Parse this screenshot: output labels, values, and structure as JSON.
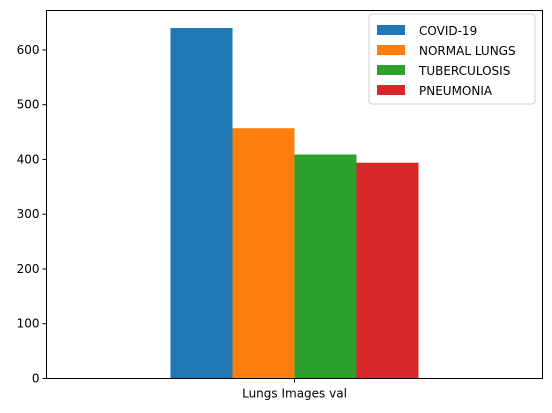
{
  "chart_data": {
    "type": "bar",
    "categories": [
      "Lungs Images val"
    ],
    "series": [
      {
        "name": "COVID-19",
        "values": [
          640
        ],
        "color": "#1f77b4"
      },
      {
        "name": "NORMAL LUNGS",
        "values": [
          457
        ],
        "color": "#ff7f0e"
      },
      {
        "name": "TUBERCULOSIS",
        "values": [
          409
        ],
        "color": "#2ca02c"
      },
      {
        "name": "PNEUMONIA",
        "values": [
          394
        ],
        "color": "#d62728"
      }
    ],
    "ylim": [
      0,
      672
    ],
    "yticks": [
      "0",
      "100",
      "200",
      "300",
      "400",
      "500",
      "600"
    ],
    "legend": "top-right",
    "grid": false
  }
}
